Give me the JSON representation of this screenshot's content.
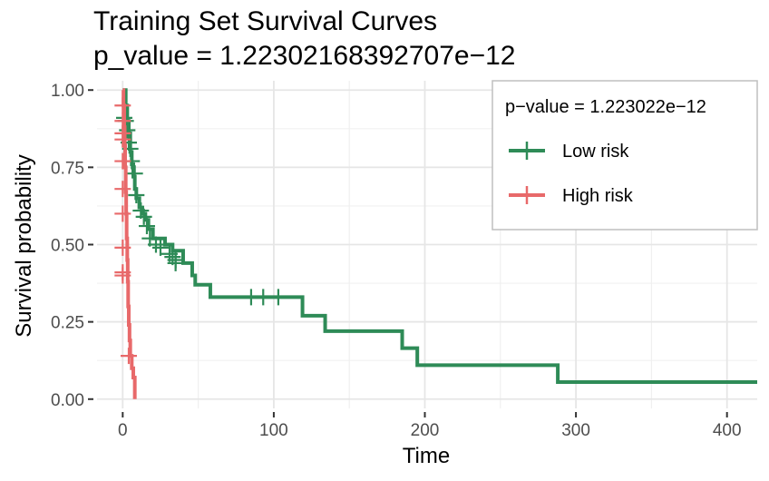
{
  "chart_data": {
    "type": "line",
    "title": "Training Set Survival Curves",
    "subtitle": "p_value = 1.22302168392707e−12",
    "xlabel": "Time",
    "ylabel": "Survival probability",
    "xlim": [
      -17,
      420
    ],
    "ylim": [
      -0.03,
      1.03
    ],
    "x_ticks": [
      0,
      100,
      200,
      300,
      400
    ],
    "x_tick_labels": [
      "0",
      "100",
      "200",
      "300",
      "400"
    ],
    "y_ticks": [
      0,
      0.25,
      0.5,
      0.75,
      1.0
    ],
    "y_tick_labels": [
      "0.00",
      "0.25",
      "0.50",
      "0.75",
      "1.00"
    ],
    "grid": true,
    "legend": {
      "title": "p−value = 1.223022e−12",
      "placement": "top-right",
      "entries": [
        "Low risk",
        "High risk"
      ]
    },
    "series": [
      {
        "name": "Low risk",
        "color": "#2E8B57",
        "steps": [
          [
            0,
            1.0
          ],
          [
            2,
            0.95
          ],
          [
            3,
            0.9
          ],
          [
            4,
            0.86
          ],
          [
            5,
            0.8
          ],
          [
            6,
            0.76
          ],
          [
            7,
            0.72
          ],
          [
            8,
            0.68
          ],
          [
            9,
            0.65
          ],
          [
            11,
            0.62
          ],
          [
            13,
            0.6
          ],
          [
            15,
            0.58
          ],
          [
            17,
            0.55
          ],
          [
            20,
            0.52
          ],
          [
            28,
            0.5
          ],
          [
            33,
            0.48
          ],
          [
            40,
            0.44
          ],
          [
            46,
            0.4
          ],
          [
            48,
            0.37
          ],
          [
            58,
            0.33
          ],
          [
            119,
            0.27
          ],
          [
            134,
            0.22
          ],
          [
            185,
            0.165
          ],
          [
            195,
            0.11
          ],
          [
            288,
            0.055
          ],
          [
            420,
            0.055
          ]
        ],
        "censors": [
          [
            1,
            0.91
          ],
          [
            2,
            0.9
          ],
          [
            3,
            0.87
          ],
          [
            4,
            0.83
          ],
          [
            5,
            0.81
          ],
          [
            6,
            0.77
          ],
          [
            8,
            0.73
          ],
          [
            9,
            0.66
          ],
          [
            12,
            0.61
          ],
          [
            14,
            0.59
          ],
          [
            16,
            0.56
          ],
          [
            18,
            0.52
          ],
          [
            22,
            0.5
          ],
          [
            25,
            0.49
          ],
          [
            31,
            0.47
          ],
          [
            33,
            0.46
          ],
          [
            35,
            0.45
          ],
          [
            35,
            0.44
          ],
          [
            85,
            0.33
          ],
          [
            93,
            0.33
          ],
          [
            103,
            0.33
          ]
        ]
      },
      {
        "name": "High risk",
        "color": "#E8696A",
        "steps": [
          [
            0,
            1.0
          ],
          [
            0.5,
            0.95
          ],
          [
            1,
            0.88
          ],
          [
            1.3,
            0.82
          ],
          [
            1.6,
            0.75
          ],
          [
            2,
            0.67
          ],
          [
            2.3,
            0.6
          ],
          [
            2.6,
            0.52
          ],
          [
            3,
            0.45
          ],
          [
            3.3,
            0.38
          ],
          [
            3.6,
            0.3
          ],
          [
            4,
            0.24
          ],
          [
            4.5,
            0.19
          ],
          [
            5,
            0.14
          ],
          [
            6,
            0.1
          ],
          [
            7,
            0.07
          ],
          [
            8,
            0.04
          ],
          [
            8,
            0
          ]
        ],
        "censors": [
          [
            0,
            0.95
          ],
          [
            0,
            0.9
          ],
          [
            0,
            0.86
          ],
          [
            0,
            0.84
          ],
          [
            0,
            0.77
          ],
          [
            0,
            0.68
          ],
          [
            0,
            0.6
          ],
          [
            0,
            0.49
          ],
          [
            0,
            0.41
          ],
          [
            0,
            0.4
          ],
          [
            4,
            0.14
          ]
        ]
      }
    ]
  }
}
